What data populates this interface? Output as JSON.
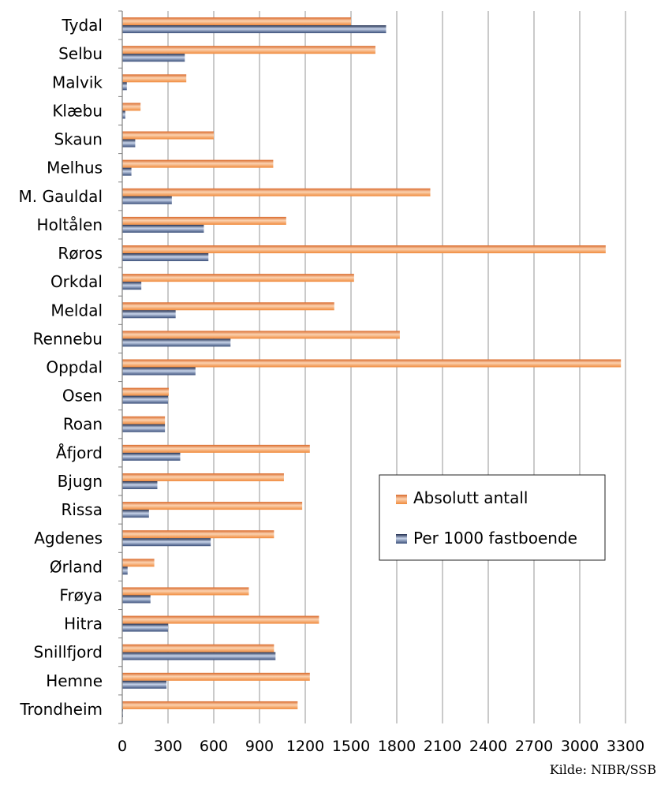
{
  "chart_data": {
    "type": "bar",
    "orientation": "horizontal",
    "title": "",
    "xlabel": "",
    "ylabel": "",
    "categories": [
      "Tydal",
      "Selbu",
      "Malvik",
      "Klæbu",
      "Skaun",
      "Melhus",
      "M. Gauldal",
      "Holtålen",
      "Røros",
      "Orkdal",
      "Meldal",
      "Rennebu",
      "Oppdal",
      "Osen",
      "Roan",
      "Åfjord",
      "Bjugn",
      "Rissa",
      "Agdenes",
      "Ørland",
      "Frøya",
      "Hitra",
      "Snillfjord",
      "Hemne",
      "Trondheim"
    ],
    "series": [
      {
        "name": "Absolutt antall",
        "color": "#f08a3c",
        "values": [
          1500,
          1660,
          420,
          120,
          600,
          990,
          2020,
          1075,
          3170,
          1520,
          1390,
          1820,
          3270,
          305,
          280,
          1230,
          1060,
          1180,
          995,
          210,
          830,
          1290,
          995,
          1230,
          1150
        ]
      },
      {
        "name": "Per 1000 fastboende",
        "color": "#3a4f7a",
        "values": [
          1730,
          410,
          30,
          20,
          85,
          60,
          325,
          535,
          565,
          125,
          350,
          710,
          480,
          300,
          280,
          380,
          230,
          175,
          580,
          35,
          185,
          300,
          1005,
          290,
          5
        ]
      }
    ],
    "xlim": [
      0,
      3300
    ],
    "xticks": [
      0,
      300,
      600,
      900,
      1200,
      1500,
      1800,
      2100,
      2400,
      2700,
      3000,
      3300
    ],
    "grid": true,
    "legend_position": "lower-right",
    "source": "Kilde: NIBR/SSB"
  }
}
